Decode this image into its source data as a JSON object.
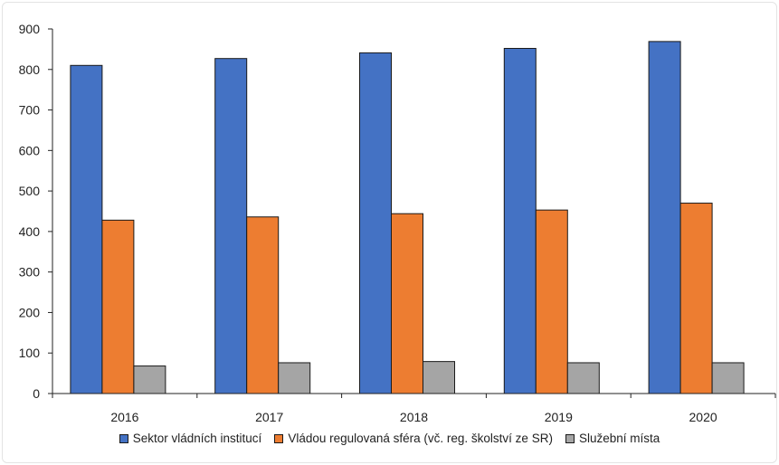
{
  "chart_data": {
    "type": "bar",
    "categories": [
      "2016",
      "2017",
      "2018",
      "2019",
      "2020"
    ],
    "series": [
      {
        "name": "Sektor vládních institucí",
        "color": "#4472C4",
        "values": [
          810,
          827,
          841,
          852,
          869
        ]
      },
      {
        "name": "Vládou regulovaná sféra (vč. reg. školství ze SR)",
        "color": "#ED7D31",
        "values": [
          428,
          436,
          444,
          453,
          470
        ]
      },
      {
        "name": "Služební  místa",
        "color": "#A5A5A5",
        "values": [
          68,
          76,
          79,
          76,
          76
        ]
      }
    ],
    "y_ticks": [
      "0",
      "100",
      "200",
      "300",
      "400",
      "500",
      "600",
      "700",
      "800",
      "900"
    ],
    "ylim": [
      0,
      900
    ],
    "grid": false,
    "legend_position": "bottom"
  }
}
